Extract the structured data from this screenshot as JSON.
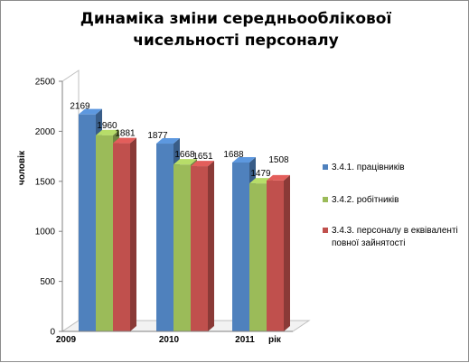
{
  "chart_data": {
    "type": "bar",
    "title": "Динаміка зміни середньооблікової чисельності персоналу",
    "ylabel": "чоловік",
    "xlabel": "рік",
    "categories": [
      "2009",
      "2010",
      "2011"
    ],
    "series": [
      {
        "name": "3.4.1. працівників",
        "color": "#4f81bd",
        "values": [
          2169,
          1877,
          1688
        ]
      },
      {
        "name": "3.4.2. робітників",
        "color": "#9bbb59",
        "values": [
          1960,
          1668,
          1479
        ]
      },
      {
        "name": "3.4.3. персоналу в еквіваленті повної зайнятості",
        "color": "#c0504d",
        "values": [
          1881,
          1651,
          1508
        ]
      }
    ],
    "data_labels": [
      [
        "2169",
        "1960",
        "1881"
      ],
      [
        "1877",
        "1668",
        "1651"
      ],
      [
        "1688",
        "1479",
        "1508"
      ]
    ],
    "ylim": [
      0,
      2500
    ],
    "yticks": [
      0,
      500,
      1000,
      1500,
      2000,
      2500
    ],
    "grid": false,
    "legend_position": "right",
    "style": "3d-clustered"
  }
}
